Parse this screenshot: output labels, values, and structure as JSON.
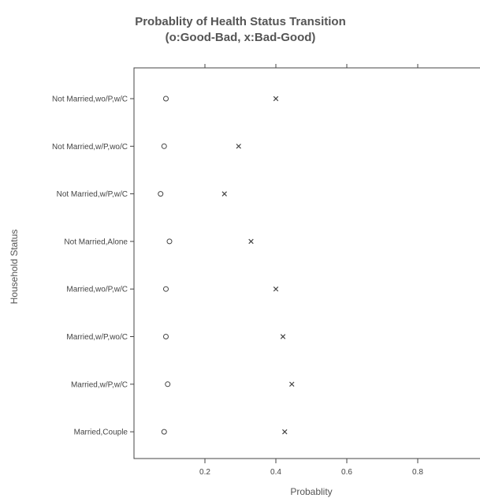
{
  "chart_data": {
    "type": "scatter",
    "orientation": "horizontal",
    "title": "Probablity of Health Status Transition",
    "subtitle": "(o:Good-Bad, x:Bad-Good)",
    "xlabel": "Probablity",
    "ylabel": "Household Status",
    "xlim": [
      0.0,
      1.0
    ],
    "xticks": [
      0.2,
      0.4,
      0.6,
      0.8
    ],
    "xtick_labels": [
      "0.2",
      "0.4",
      "0.6",
      "0.8"
    ],
    "grid": false,
    "categories": [
      "Not Married,wo/P,w/C",
      "Not Married,w/P,wo/C",
      "Not Married,w/P,w/C",
      "Not Married,Alone",
      "Married,wo/P,w/C",
      "Married,w/P,wo/C",
      "Married,w/P,w/C",
      "Married,Couple"
    ],
    "series": [
      {
        "marker": "circle",
        "values": [
          0.09,
          0.085,
          0.075,
          0.1,
          0.09,
          0.09,
          0.095,
          0.085
        ]
      },
      {
        "marker": "x",
        "values": [
          0.4,
          0.295,
          0.255,
          0.33,
          0.4,
          0.42,
          0.445,
          0.425
        ]
      }
    ]
  }
}
